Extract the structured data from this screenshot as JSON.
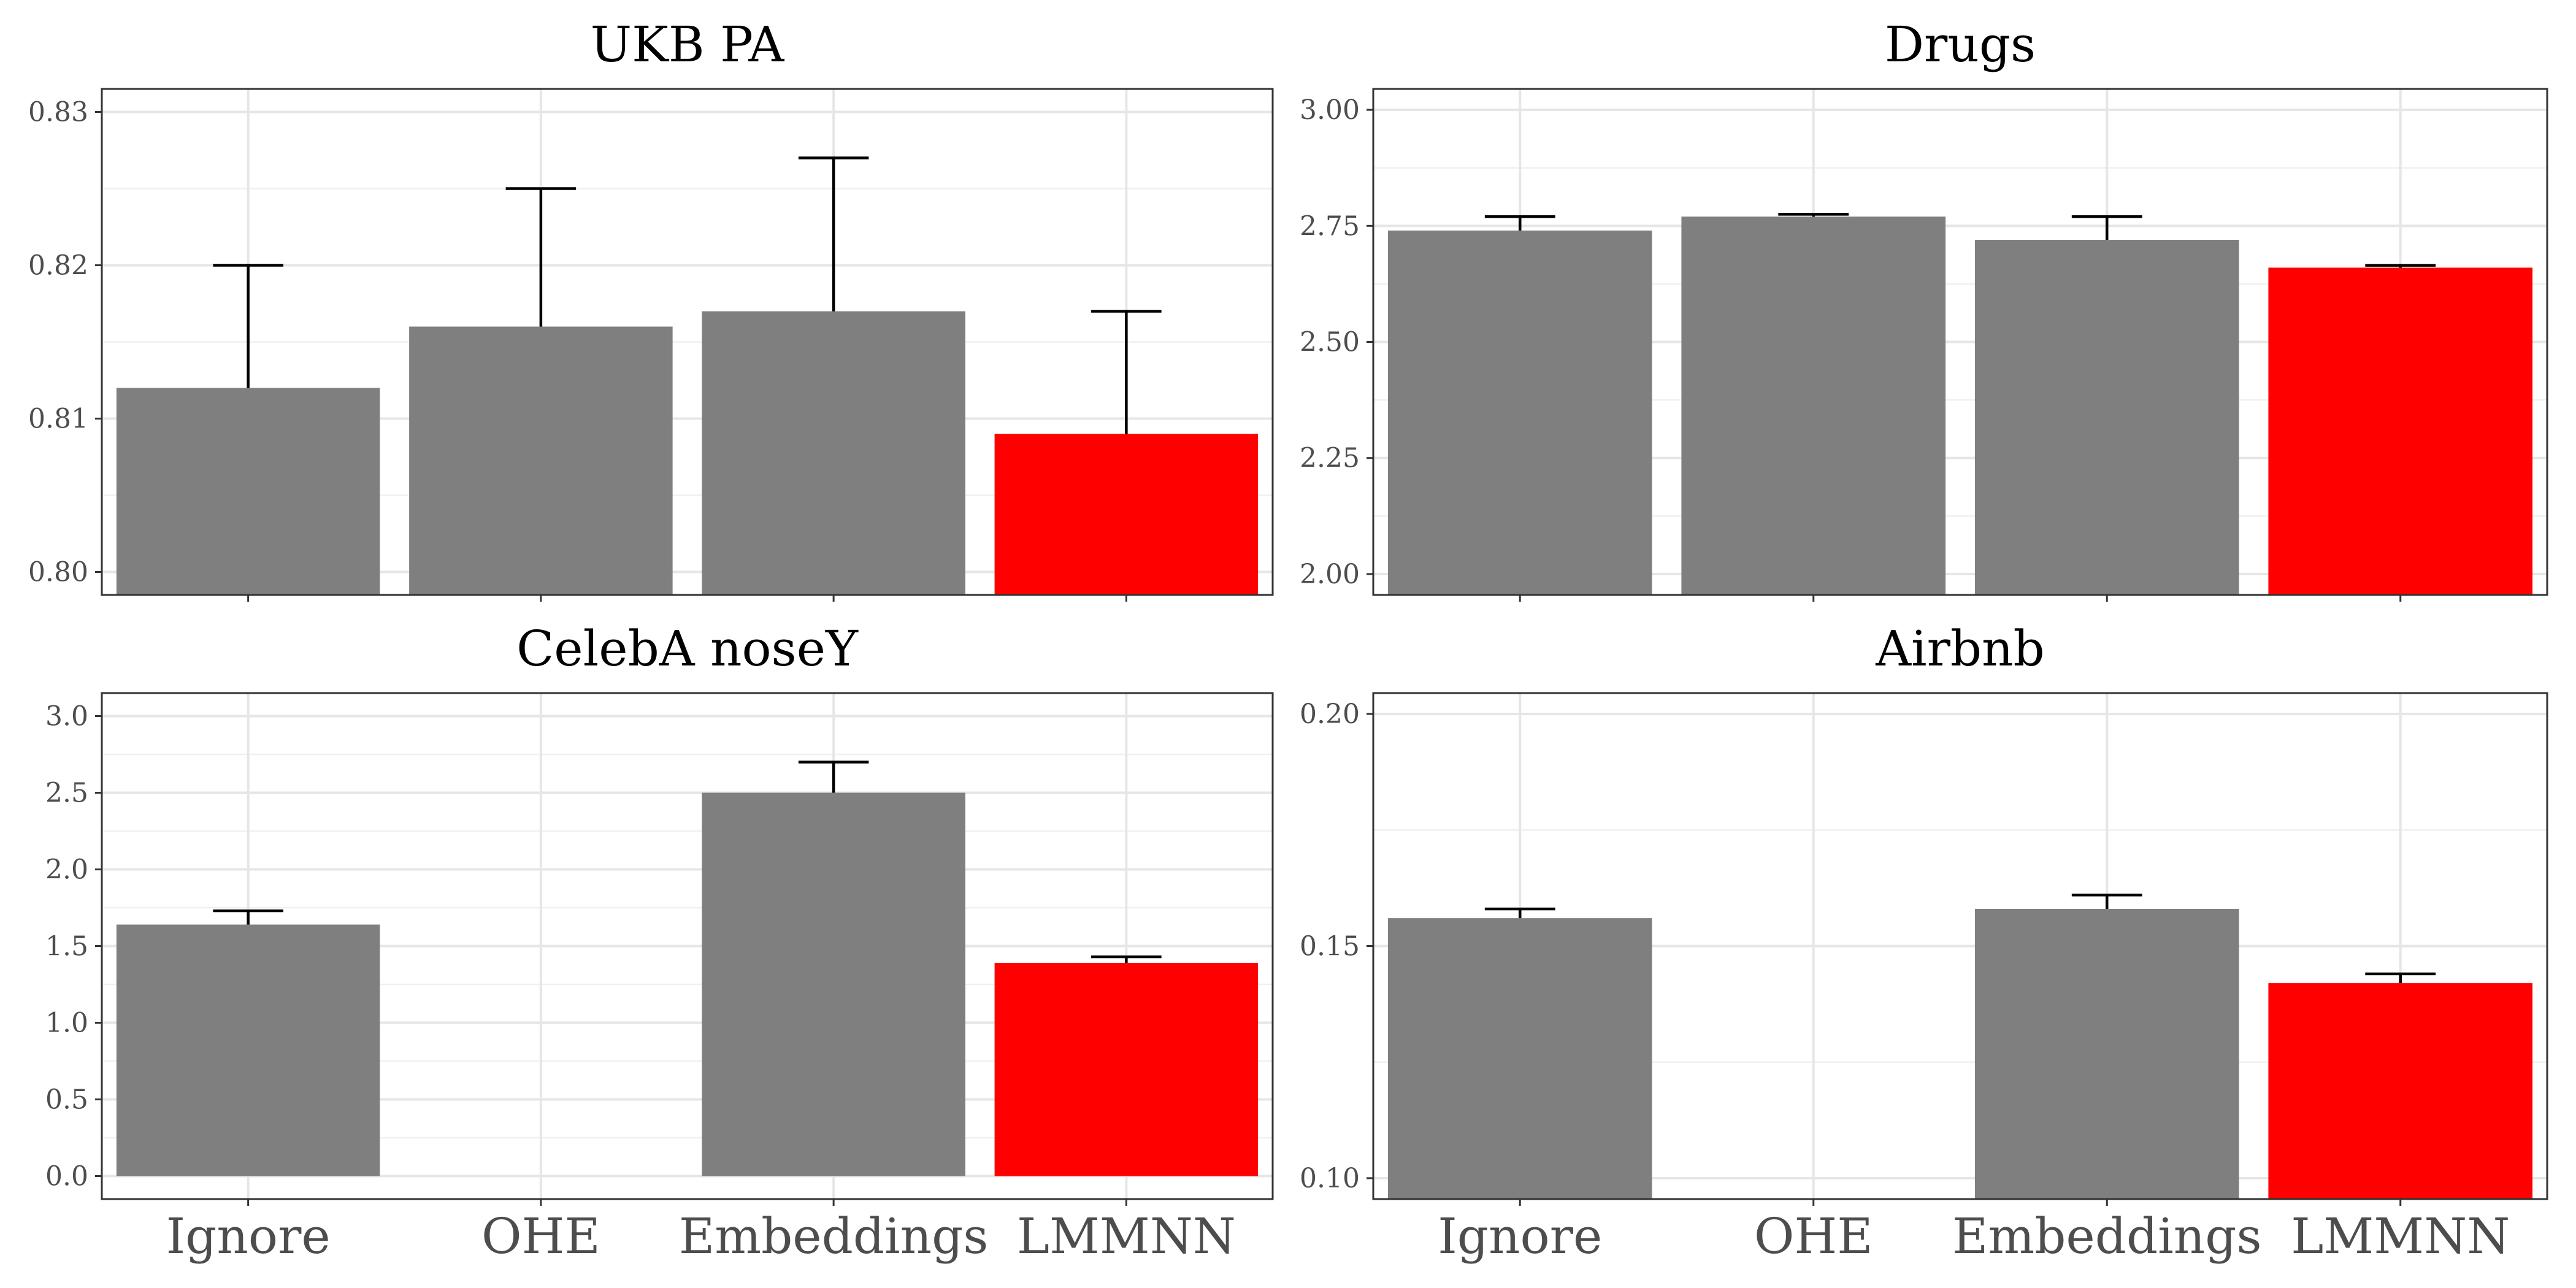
{
  "chart_data": [
    {
      "type": "bar",
      "title": "UKB PA",
      "categories": [
        "Ignore",
        "OHE",
        "Embeddings",
        "LMMNN"
      ],
      "values": [
        0.812,
        0.816,
        0.817,
        0.809
      ],
      "error_upper": [
        0.82,
        0.825,
        0.827,
        0.817
      ],
      "ylim": [
        0.7985,
        0.8315
      ],
      "yticks": [
        0.8,
        0.81,
        0.82,
        0.83
      ],
      "ytick_labels": [
        "0.80",
        "0.81",
        "0.82",
        "0.83"
      ],
      "show_xtick_labels": false,
      "grid": true
    },
    {
      "type": "bar",
      "title": "Drugs",
      "categories": [
        "Ignore",
        "OHE",
        "Embeddings",
        "LMMNN"
      ],
      "values": [
        2.74,
        2.77,
        2.72,
        2.66
      ],
      "error_upper": [
        2.77,
        2.775,
        2.77,
        2.665
      ],
      "ylim": [
        1.955,
        3.045
      ],
      "yticks": [
        2.0,
        2.25,
        2.5,
        2.75,
        3.0
      ],
      "ytick_labels": [
        "2.00",
        "2.25",
        "2.50",
        "2.75",
        "3.00"
      ],
      "show_xtick_labels": false,
      "grid": true
    },
    {
      "type": "bar",
      "title": "CelebA noseY",
      "categories": [
        "Ignore",
        "OHE",
        "Embeddings",
        "LMMNN"
      ],
      "values": [
        1.64,
        null,
        2.5,
        1.39
      ],
      "error_upper": [
        1.73,
        null,
        2.7,
        1.43
      ],
      "ylim": [
        -0.15,
        3.15
      ],
      "yticks": [
        0.0,
        0.5,
        1.0,
        1.5,
        2.0,
        2.5,
        3.0
      ],
      "ytick_labels": [
        "0.0",
        "0.5",
        "1.0",
        "1.5",
        "2.0",
        "2.5",
        "3.0"
      ],
      "show_xtick_labels": true,
      "grid": true
    },
    {
      "type": "bar",
      "title": "Airbnb",
      "categories": [
        "Ignore",
        "OHE",
        "Embeddings",
        "LMMNN"
      ],
      "values": [
        0.156,
        null,
        0.158,
        0.142
      ],
      "error_upper": [
        0.158,
        null,
        0.161,
        0.144
      ],
      "ylim": [
        0.0955,
        0.2045
      ],
      "yticks": [
        0.1,
        0.15,
        0.2
      ],
      "ytick_labels": [
        "0.10",
        "0.15",
        "0.20"
      ],
      "show_xtick_labels": true,
      "grid": true
    }
  ],
  "colors": {
    "default_bar": "#7f7f7f",
    "highlight_bar": "#ff0000",
    "highlight_category": "LMMNN"
  }
}
